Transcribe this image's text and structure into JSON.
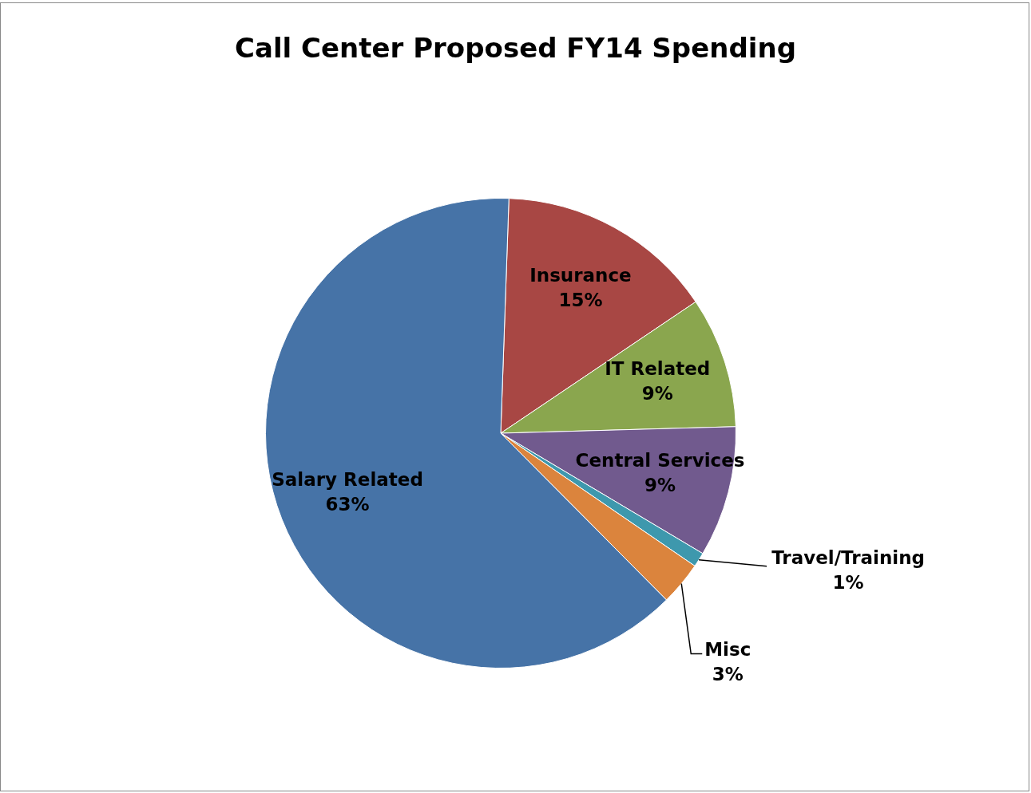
{
  "chart_data": {
    "type": "pie",
    "title": "Call Center Proposed FY14 Spending",
    "categories": [
      "Insurance",
      "IT Related",
      "Central Services",
      "Travel/Training",
      "Misc",
      "Salary Related"
    ],
    "values": [
      15,
      9,
      9,
      1,
      3,
      63
    ],
    "value_labels": [
      "15%",
      "9%",
      "9%",
      "1%",
      "3%",
      "63%"
    ],
    "colors": [
      "#a84744",
      "#8aa64e",
      "#715a8e",
      "#3e98ad",
      "#db843d",
      "#4673a7"
    ],
    "legend": false
  }
}
